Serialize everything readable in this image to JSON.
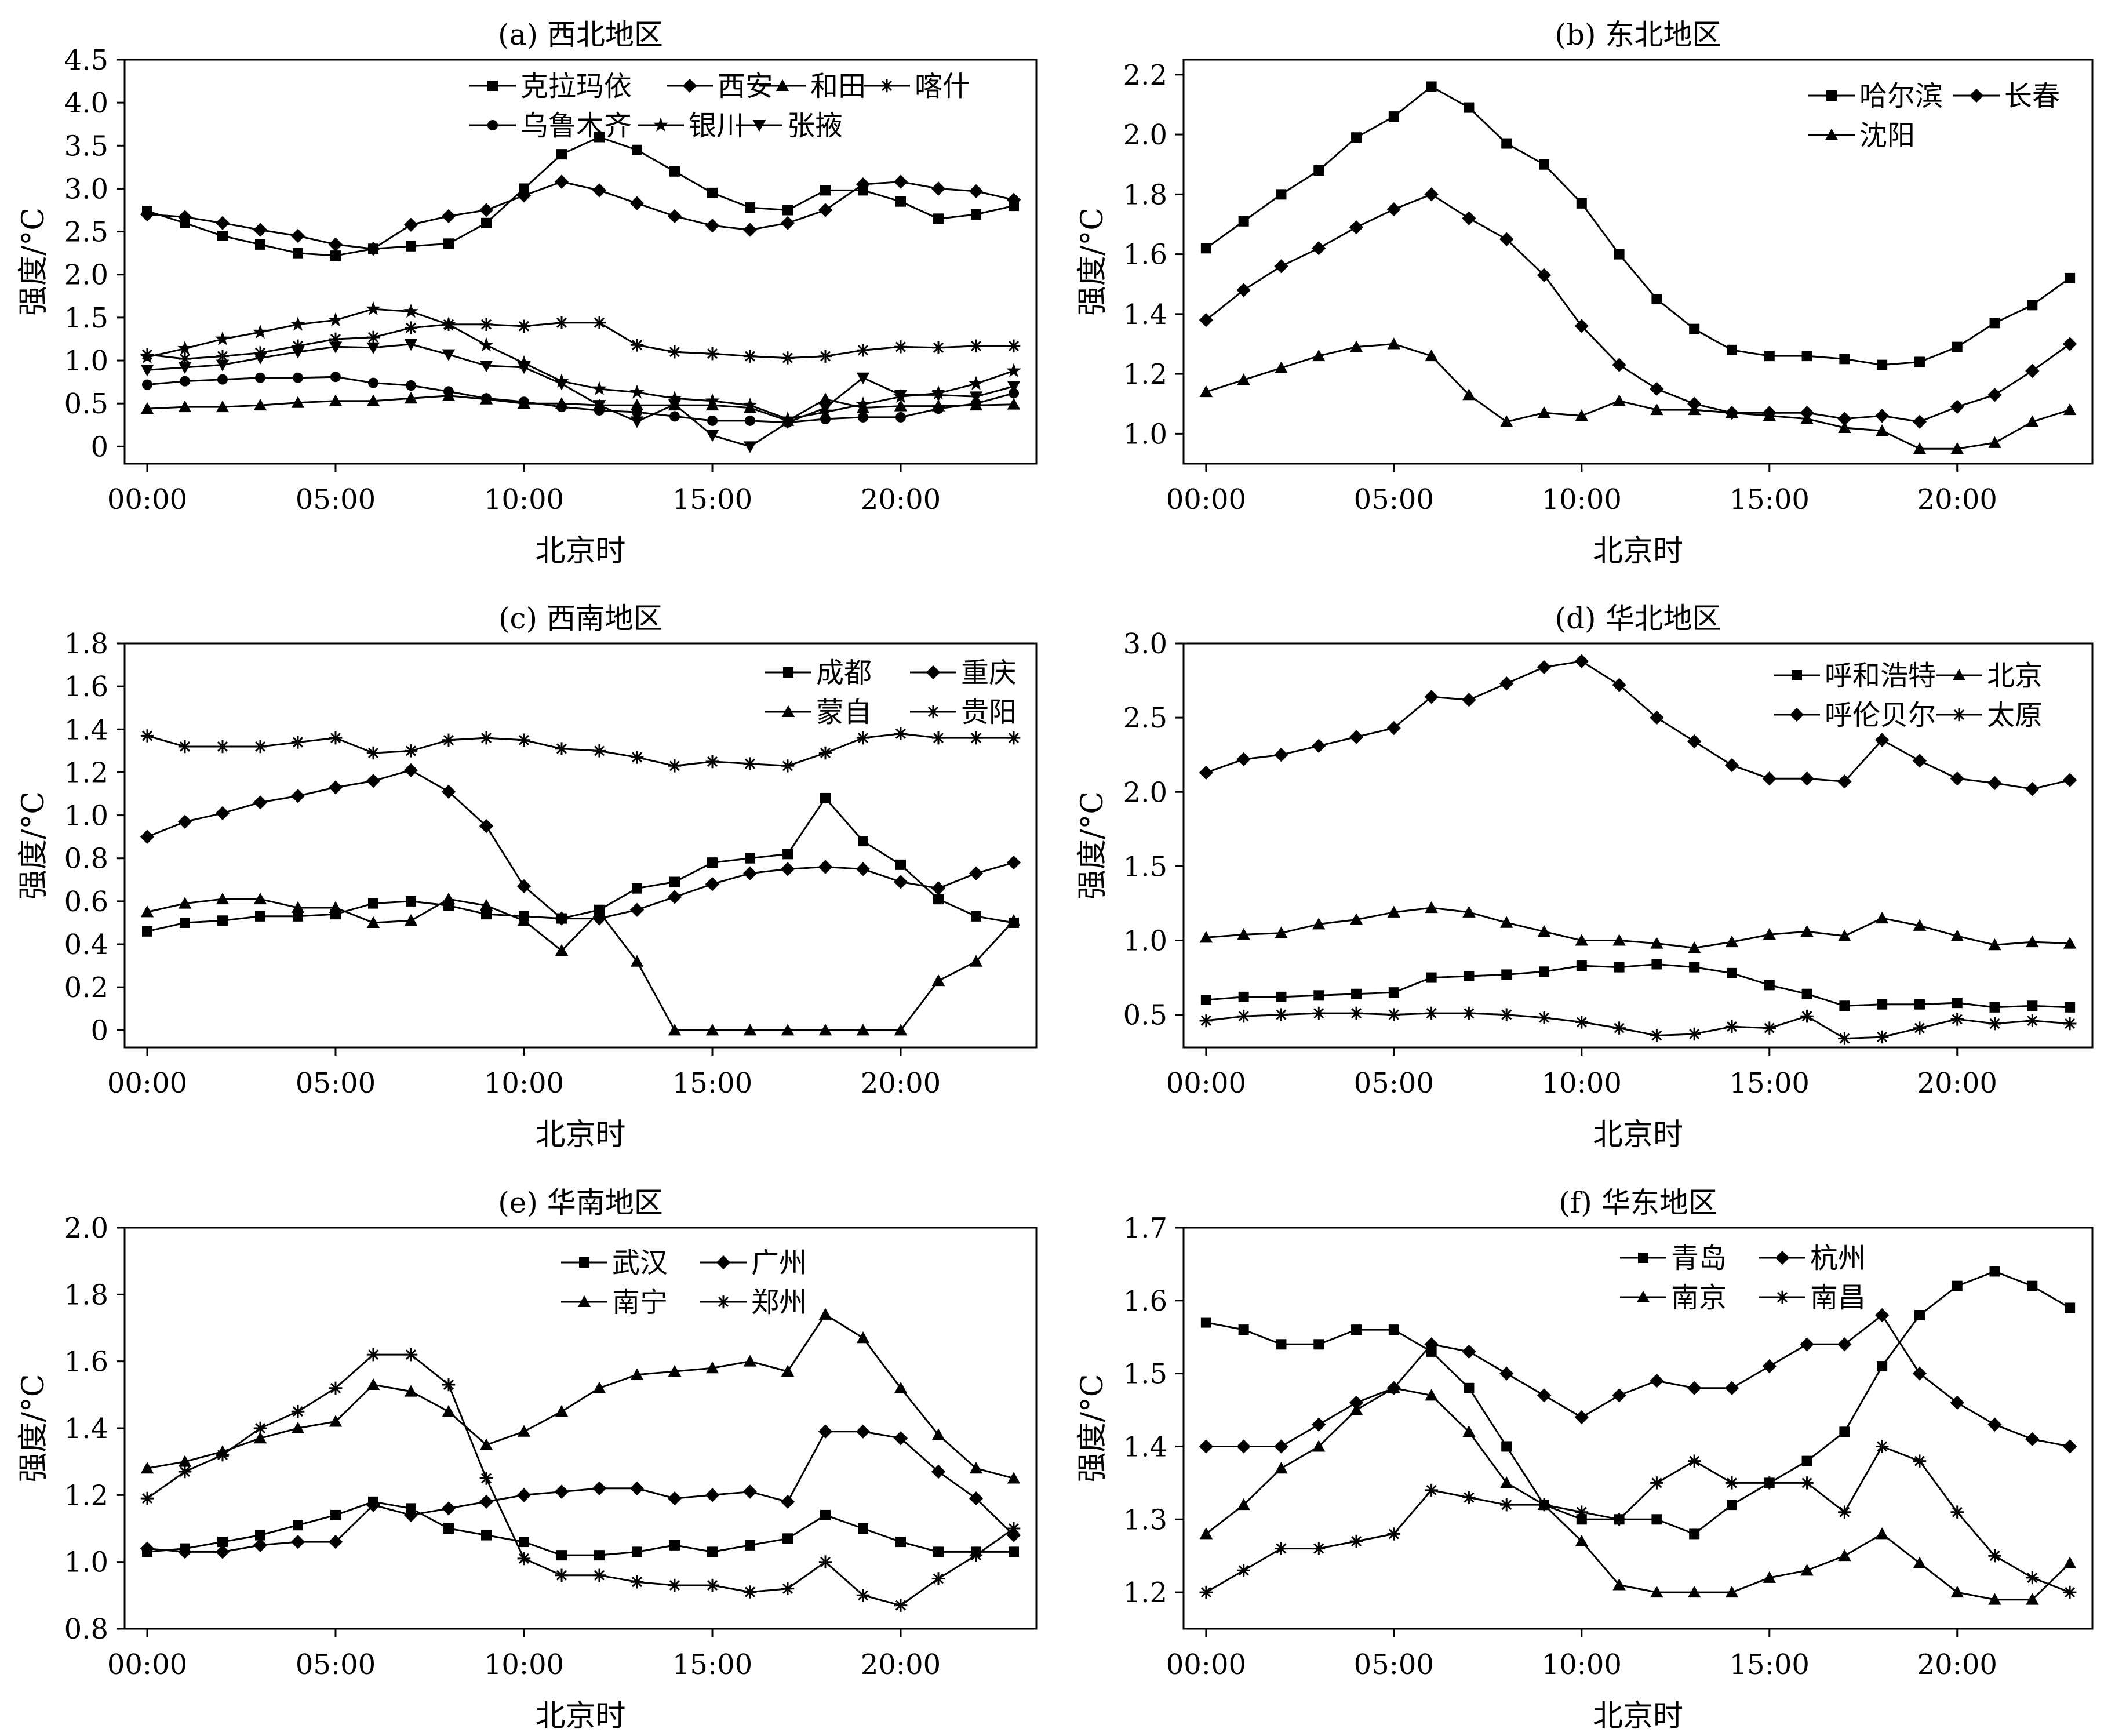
{
  "x_tick_labels": [
    "00:00",
    "05:00",
    "10:00",
    "15:00",
    "20:00"
  ],
  "chart_data": [
    {
      "type": "line",
      "title": "(a) 西北地区",
      "xlabel": "北京时",
      "ylabel": "强度/°C",
      "x": [
        0,
        1,
        2,
        3,
        4,
        5,
        6,
        7,
        8,
        9,
        10,
        11,
        12,
        13,
        14,
        15,
        16,
        17,
        18,
        19,
        20,
        21,
        22,
        23
      ],
      "ylim": [
        -0.2,
        4.5
      ],
      "yticks": [
        0,
        0.5,
        1.0,
        1.5,
        2.0,
        2.5,
        3.0,
        3.5,
        4.0,
        4.5
      ],
      "ytick_labels": [
        "0",
        "0.5",
        "1.0",
        "1.5",
        "2.0",
        "2.5",
        "3.0",
        "3.5",
        "4.0",
        "4.5"
      ],
      "grid": false,
      "legend": "top-right",
      "legend_cols": 4,
      "series": [
        {
          "name": "克拉玛依",
          "marker": "square",
          "values": [
            2.74,
            2.6,
            2.45,
            2.35,
            2.25,
            2.22,
            2.3,
            2.33,
            2.36,
            2.6,
            3.0,
            3.4,
            3.6,
            3.45,
            3.2,
            2.95,
            2.78,
            2.75,
            2.98,
            2.98,
            2.85,
            2.65,
            2.7,
            2.8
          ]
        },
        {
          "name": "西安",
          "marker": "diamond",
          "values": [
            2.7,
            2.67,
            2.6,
            2.52,
            2.45,
            2.35,
            2.3,
            2.58,
            2.68,
            2.75,
            2.92,
            3.08,
            2.98,
            2.83,
            2.68,
            2.57,
            2.52,
            2.6,
            2.75,
            3.05,
            3.08,
            3.0,
            2.97,
            2.87
          ]
        },
        {
          "name": "和田",
          "marker": "triangle",
          "values": [
            0.44,
            0.46,
            0.46,
            0.48,
            0.51,
            0.53,
            0.53,
            0.56,
            0.59,
            0.55,
            0.5,
            0.5,
            0.48,
            0.48,
            0.48,
            0.48,
            0.45,
            0.3,
            0.55,
            0.45,
            0.47,
            0.47,
            0.48,
            0.49
          ]
        },
        {
          "name": "喀什",
          "marker": "star",
          "values": [
            1.07,
            1.02,
            1.05,
            1.09,
            1.17,
            1.25,
            1.27,
            1.38,
            1.42,
            1.42,
            1.4,
            1.44,
            1.44,
            1.18,
            1.1,
            1.08,
            1.05,
            1.03,
            1.05,
            1.12,
            1.16,
            1.15,
            1.17,
            1.17
          ]
        },
        {
          "name": "乌鲁木齐",
          "marker": "circle",
          "values": [
            0.72,
            0.76,
            0.78,
            0.8,
            0.8,
            0.81,
            0.74,
            0.71,
            0.64,
            0.56,
            0.52,
            0.46,
            0.42,
            0.4,
            0.35,
            0.3,
            0.3,
            0.28,
            0.32,
            0.34,
            0.34,
            0.44,
            0.5,
            0.62
          ]
        },
        {
          "name": "银川",
          "marker": "star6",
          "values": [
            1.04,
            1.14,
            1.25,
            1.33,
            1.42,
            1.47,
            1.6,
            1.57,
            1.42,
            1.18,
            0.97,
            0.76,
            0.67,
            0.63,
            0.56,
            0.53,
            0.48,
            0.32,
            0.4,
            0.49,
            0.58,
            0.62,
            0.73,
            0.88
          ]
        },
        {
          "name": "张掖",
          "marker": "tri-down",
          "values": [
            0.89,
            0.92,
            0.95,
            1.03,
            1.1,
            1.16,
            1.15,
            1.19,
            1.07,
            0.94,
            0.92,
            0.73,
            0.48,
            0.29,
            0.49,
            0.13,
            0.0,
            0.28,
            0.45,
            0.8,
            0.6,
            0.6,
            0.58,
            0.7
          ]
        }
      ]
    },
    {
      "type": "line",
      "title": "(b) 东北地区",
      "xlabel": "北京时",
      "ylabel": "强度/°C",
      "x": [
        0,
        1,
        2,
        3,
        4,
        5,
        6,
        7,
        8,
        9,
        10,
        11,
        12,
        13,
        14,
        15,
        16,
        17,
        18,
        19,
        20,
        21,
        22,
        23
      ],
      "ylim": [
        0.9,
        2.25
      ],
      "yticks": [
        1.0,
        1.2,
        1.4,
        1.6,
        1.8,
        2.0,
        2.2
      ],
      "ytick_labels": [
        "1.0",
        "1.2",
        "1.4",
        "1.6",
        "1.8",
        "2.0",
        "2.2"
      ],
      "grid": false,
      "legend": "top-right",
      "legend_cols": 2,
      "series": [
        {
          "name": "哈尔滨",
          "marker": "square",
          "values": [
            1.62,
            1.71,
            1.8,
            1.88,
            1.99,
            2.06,
            2.16,
            2.09,
            1.97,
            1.9,
            1.77,
            1.6,
            1.45,
            1.35,
            1.28,
            1.26,
            1.26,
            1.25,
            1.23,
            1.24,
            1.29,
            1.37,
            1.43,
            1.52
          ]
        },
        {
          "name": "长春",
          "marker": "diamond",
          "values": [
            1.38,
            1.48,
            1.56,
            1.62,
            1.69,
            1.75,
            1.8,
            1.72,
            1.65,
            1.53,
            1.36,
            1.23,
            1.15,
            1.1,
            1.07,
            1.07,
            1.07,
            1.05,
            1.06,
            1.04,
            1.09,
            1.13,
            1.21,
            1.3
          ]
        },
        {
          "name": "沈阳",
          "marker": "triangle",
          "values": [
            1.14,
            1.18,
            1.22,
            1.26,
            1.29,
            1.3,
            1.26,
            1.13,
            1.04,
            1.07,
            1.06,
            1.11,
            1.08,
            1.08,
            1.07,
            1.06,
            1.05,
            1.02,
            1.01,
            0.95,
            0.95,
            0.97,
            1.04,
            1.08
          ]
        }
      ]
    },
    {
      "type": "line",
      "title": "(c) 西南地区",
      "xlabel": "北京时",
      "ylabel": "强度/°C",
      "x": [
        0,
        1,
        2,
        3,
        4,
        5,
        6,
        7,
        8,
        9,
        10,
        11,
        12,
        13,
        14,
        15,
        16,
        17,
        18,
        19,
        20,
        21,
        22,
        23
      ],
      "ylim": [
        -0.08,
        1.8
      ],
      "yticks": [
        0,
        0.2,
        0.4,
        0.6,
        0.8,
        1.0,
        1.2,
        1.4,
        1.6,
        1.8
      ],
      "ytick_labels": [
        "0",
        "0.2",
        "0.4",
        "0.6",
        "0.8",
        "1.0",
        "1.2",
        "1.4",
        "1.6",
        "1.8"
      ],
      "grid": false,
      "legend": "top-right",
      "legend_cols": 2,
      "series": [
        {
          "name": "成都",
          "marker": "square",
          "values": [
            0.46,
            0.5,
            0.51,
            0.53,
            0.53,
            0.54,
            0.59,
            0.6,
            0.58,
            0.54,
            0.53,
            0.52,
            0.56,
            0.66,
            0.69,
            0.78,
            0.8,
            0.82,
            1.08,
            0.88,
            0.77,
            0.61,
            0.53,
            0.5
          ]
        },
        {
          "name": "重庆",
          "marker": "diamond",
          "values": [
            0.9,
            0.97,
            1.01,
            1.06,
            1.09,
            1.13,
            1.16,
            1.21,
            1.11,
            0.95,
            0.67,
            0.52,
            0.52,
            0.56,
            0.62,
            0.68,
            0.73,
            0.75,
            0.76,
            0.75,
            0.69,
            0.66,
            0.73,
            0.78
          ]
        },
        {
          "name": "蒙自",
          "marker": "triangle",
          "values": [
            0.55,
            0.59,
            0.61,
            0.61,
            0.57,
            0.57,
            0.5,
            0.51,
            0.61,
            0.58,
            0.51,
            0.37,
            0.55,
            0.32,
            0.0,
            0.0,
            0.0,
            0.0,
            0.0,
            0.0,
            0.0,
            0.23,
            0.32,
            0.51
          ]
        },
        {
          "name": "贵阳",
          "marker": "star",
          "values": [
            1.37,
            1.32,
            1.32,
            1.32,
            1.34,
            1.36,
            1.29,
            1.3,
            1.35,
            1.36,
            1.35,
            1.31,
            1.3,
            1.27,
            1.23,
            1.25,
            1.24,
            1.23,
            1.29,
            1.36,
            1.38,
            1.36,
            1.36,
            1.36
          ]
        }
      ]
    },
    {
      "type": "line",
      "title": "(d) 华北地区",
      "xlabel": "北京时",
      "ylabel": "强度/°C",
      "x": [
        0,
        1,
        2,
        3,
        4,
        5,
        6,
        7,
        8,
        9,
        10,
        11,
        12,
        13,
        14,
        15,
        16,
        17,
        18,
        19,
        20,
        21,
        22,
        23
      ],
      "ylim": [
        0.28,
        3.0
      ],
      "yticks": [
        0.5,
        1.0,
        1.5,
        2.0,
        2.5,
        3.0
      ],
      "ytick_labels": [
        "0.5",
        "1.0",
        "1.5",
        "2.0",
        "2.5",
        "3.0"
      ],
      "grid": false,
      "legend": "top-right",
      "legend_cols": 2,
      "series": [
        {
          "name": "呼和浩特",
          "marker": "square",
          "values": [
            0.6,
            0.62,
            0.62,
            0.63,
            0.64,
            0.65,
            0.75,
            0.76,
            0.77,
            0.79,
            0.83,
            0.82,
            0.84,
            0.82,
            0.78,
            0.7,
            0.64,
            0.56,
            0.57,
            0.57,
            0.58,
            0.55,
            0.56,
            0.55
          ]
        },
        {
          "name": "北京",
          "marker": "triangle",
          "values": [
            1.02,
            1.04,
            1.05,
            1.11,
            1.14,
            1.19,
            1.22,
            1.19,
            1.12,
            1.06,
            1.0,
            1.0,
            0.98,
            0.95,
            0.99,
            1.04,
            1.06,
            1.03,
            1.15,
            1.1,
            1.03,
            0.97,
            0.99,
            0.98
          ]
        },
        {
          "name": "呼伦贝尔",
          "marker": "diamond",
          "values": [
            2.13,
            2.22,
            2.25,
            2.31,
            2.37,
            2.43,
            2.64,
            2.62,
            2.73,
            2.84,
            2.88,
            2.72,
            2.5,
            2.34,
            2.18,
            2.09,
            2.09,
            2.07,
            2.35,
            2.21,
            2.09,
            2.06,
            2.02,
            2.08
          ]
        },
        {
          "name": "太原",
          "marker": "star",
          "values": [
            0.46,
            0.49,
            0.5,
            0.51,
            0.51,
            0.5,
            0.51,
            0.51,
            0.5,
            0.48,
            0.45,
            0.41,
            0.36,
            0.37,
            0.42,
            0.41,
            0.49,
            0.34,
            0.35,
            0.41,
            0.47,
            0.44,
            0.46,
            0.44
          ]
        }
      ]
    },
    {
      "type": "line",
      "title": "(e) 华南地区",
      "xlabel": "北京时",
      "ylabel": "强度/°C",
      "x": [
        0,
        1,
        2,
        3,
        4,
        5,
        6,
        7,
        8,
        9,
        10,
        11,
        12,
        13,
        14,
        15,
        16,
        17,
        18,
        19,
        20,
        21,
        22,
        23
      ],
      "ylim": [
        0.8,
        2.0
      ],
      "yticks": [
        0.8,
        1.0,
        1.2,
        1.4,
        1.6,
        1.8,
        2.0
      ],
      "ytick_labels": [
        "0.8",
        "1.0",
        "1.2",
        "1.4",
        "1.6",
        "1.8",
        "2.0"
      ],
      "grid": false,
      "legend": "top-center",
      "legend_cols": 2,
      "series": [
        {
          "name": "武汉",
          "marker": "square",
          "values": [
            1.03,
            1.04,
            1.06,
            1.08,
            1.11,
            1.14,
            1.18,
            1.16,
            1.1,
            1.08,
            1.06,
            1.02,
            1.02,
            1.03,
            1.05,
            1.03,
            1.05,
            1.07,
            1.14,
            1.1,
            1.06,
            1.03,
            1.03,
            1.03
          ]
        },
        {
          "name": "广州",
          "marker": "diamond",
          "values": [
            1.04,
            1.03,
            1.03,
            1.05,
            1.06,
            1.06,
            1.17,
            1.14,
            1.16,
            1.18,
            1.2,
            1.21,
            1.22,
            1.22,
            1.19,
            1.2,
            1.21,
            1.18,
            1.39,
            1.39,
            1.37,
            1.27,
            1.19,
            1.08
          ]
        },
        {
          "name": "南宁",
          "marker": "triangle",
          "values": [
            1.28,
            1.3,
            1.33,
            1.37,
            1.4,
            1.42,
            1.53,
            1.51,
            1.45,
            1.35,
            1.39,
            1.45,
            1.52,
            1.56,
            1.57,
            1.58,
            1.6,
            1.57,
            1.74,
            1.67,
            1.52,
            1.38,
            1.28,
            1.25
          ]
        },
        {
          "name": "郑州",
          "marker": "star",
          "values": [
            1.19,
            1.27,
            1.32,
            1.4,
            1.45,
            1.52,
            1.62,
            1.62,
            1.53,
            1.25,
            1.01,
            0.96,
            0.96,
            0.94,
            0.93,
            0.93,
            0.91,
            0.92,
            1.0,
            0.9,
            0.87,
            0.95,
            1.02,
            1.1
          ]
        }
      ]
    },
    {
      "type": "line",
      "title": "(f) 华东地区",
      "xlabel": "北京时",
      "ylabel": "强度/°C",
      "x": [
        0,
        1,
        2,
        3,
        4,
        5,
        6,
        7,
        8,
        9,
        10,
        11,
        12,
        13,
        14,
        15,
        16,
        17,
        18,
        19,
        20,
        21,
        22,
        23
      ],
      "ylim": [
        1.15,
        1.7
      ],
      "yticks": [
        1.2,
        1.3,
        1.4,
        1.5,
        1.6,
        1.7
      ],
      "ytick_labels": [
        "1.2",
        "1.3",
        "1.4",
        "1.5",
        "1.6",
        "1.7"
      ],
      "grid": false,
      "legend": "top-right",
      "legend_cols": 2,
      "series": [
        {
          "name": "青岛",
          "marker": "square",
          "values": [
            1.57,
            1.56,
            1.54,
            1.54,
            1.56,
            1.56,
            1.53,
            1.48,
            1.4,
            1.32,
            1.3,
            1.3,
            1.3,
            1.28,
            1.32,
            1.35,
            1.38,
            1.42,
            1.51,
            1.58,
            1.62,
            1.64,
            1.62,
            1.59
          ]
        },
        {
          "name": "杭州",
          "marker": "diamond",
          "values": [
            1.4,
            1.4,
            1.4,
            1.43,
            1.46,
            1.48,
            1.54,
            1.53,
            1.5,
            1.47,
            1.44,
            1.47,
            1.49,
            1.48,
            1.48,
            1.51,
            1.54,
            1.54,
            1.58,
            1.5,
            1.46,
            1.43,
            1.41,
            1.4
          ]
        },
        {
          "name": "南京",
          "marker": "triangle",
          "values": [
            1.28,
            1.32,
            1.37,
            1.4,
            1.45,
            1.48,
            1.47,
            1.42,
            1.35,
            1.32,
            1.27,
            1.21,
            1.2,
            1.2,
            1.2,
            1.22,
            1.23,
            1.25,
            1.28,
            1.24,
            1.2,
            1.19,
            1.19,
            1.24
          ]
        },
        {
          "name": "南昌",
          "marker": "star",
          "values": [
            1.2,
            1.23,
            1.26,
            1.26,
            1.27,
            1.28,
            1.34,
            1.33,
            1.32,
            1.32,
            1.31,
            1.3,
            1.35,
            1.38,
            1.35,
            1.35,
            1.35,
            1.31,
            1.4,
            1.38,
            1.31,
            1.25,
            1.22,
            1.2
          ]
        }
      ]
    }
  ]
}
